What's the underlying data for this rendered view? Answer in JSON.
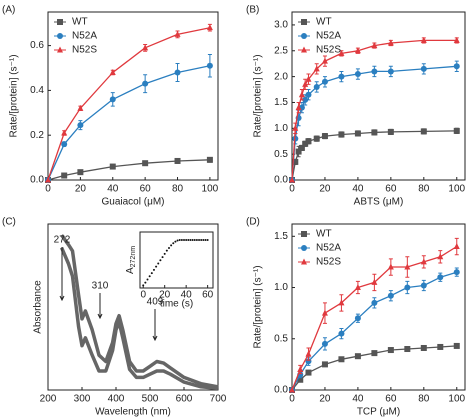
{
  "chart_data": [
    {
      "type": "scatter",
      "label": "(A)",
      "xlabel": "Guaiacol (μM)",
      "ylabel": "Rate/[protein] (s⁻¹)",
      "legend": "upper left",
      "xlim": [
        0,
        105
      ],
      "xticks": [
        0,
        20,
        40,
        60,
        80,
        100
      ],
      "ylim": [
        0,
        0.75
      ],
      "yticks": [
        {
          "value": 0,
          "label": "0.0"
        },
        {
          "value": 0.2,
          "label": "0.2"
        },
        {
          "value": 0.4,
          "label": "0.4"
        },
        {
          "value": 0.6,
          "label": "0.6"
        }
      ],
      "x": [
        0,
        10,
        20,
        40,
        60,
        80,
        100
      ],
      "series": [
        {
          "name": "WT",
          "color": "#555555",
          "marker": "square",
          "values": [
            0,
            0.02,
            0.035,
            0.06,
            0.075,
            0.085,
            0.09
          ],
          "errors": [
            0,
            0.005,
            0.005,
            0.008,
            0.008,
            0.01,
            0.01
          ]
        },
        {
          "name": "N52A",
          "color": "#2b7fc0",
          "marker": "circle",
          "values": [
            0,
            0.16,
            0.245,
            0.36,
            0.43,
            0.48,
            0.51
          ],
          "errors": [
            0,
            0.01,
            0.02,
            0.03,
            0.04,
            0.04,
            0.05
          ]
        },
        {
          "name": "N52S",
          "color": "#e0393e",
          "marker": "triangle",
          "values": [
            0,
            0.21,
            0.32,
            0.48,
            0.59,
            0.65,
            0.68
          ],
          "errors": [
            0,
            0.01,
            0.01,
            0.01,
            0.015,
            0.015,
            0.015
          ]
        }
      ]
    },
    {
      "type": "scatter",
      "label": "(B)",
      "xlabel": "ABTS (μM)",
      "ylabel": "Rate/[protein] (s⁻¹)",
      "legend": "upper left",
      "xlim": [
        0,
        105
      ],
      "xticks": [
        0,
        20,
        40,
        60,
        80,
        100
      ],
      "ylim": [
        0,
        3.25
      ],
      "yticks": [
        {
          "value": 0,
          "label": "0.0"
        },
        {
          "value": 0.5,
          "label": "0.5"
        },
        {
          "value": 1,
          "label": "1.0"
        },
        {
          "value": 1.5,
          "label": "1.5"
        },
        {
          "value": 2,
          "label": "2.0"
        },
        {
          "value": 2.5,
          "label": "2.5"
        },
        {
          "value": 3,
          "label": "3.0"
        }
      ],
      "x": [
        0,
        2,
        4,
        6,
        8,
        10,
        15,
        20,
        30,
        40,
        50,
        60,
        80,
        100
      ],
      "series": [
        {
          "name": "WT",
          "color": "#555555",
          "marker": "square",
          "values": [
            0,
            0.35,
            0.55,
            0.62,
            0.7,
            0.75,
            0.8,
            0.85,
            0.88,
            0.9,
            0.92,
            0.93,
            0.94,
            0.95
          ],
          "errors": [
            0,
            0.05,
            0.1,
            0.05,
            0.05,
            0.05,
            0.05,
            0.05,
            0.05,
            0.05,
            0.05,
            0.05,
            0.05,
            0.05
          ]
        },
        {
          "name": "N52A",
          "color": "#2b7fc0",
          "marker": "circle",
          "values": [
            0,
            0.8,
            1.2,
            1.4,
            1.55,
            1.65,
            1.8,
            1.9,
            2.0,
            2.05,
            2.1,
            2.1,
            2.15,
            2.2
          ],
          "errors": [
            0,
            0.1,
            0.15,
            0.1,
            0.1,
            0.1,
            0.1,
            0.1,
            0.1,
            0.1,
            0.1,
            0.1,
            0.1,
            0.1
          ]
        },
        {
          "name": "N52S",
          "color": "#e0393e",
          "marker": "triangle",
          "values": [
            0,
            1.0,
            1.4,
            1.65,
            1.85,
            1.95,
            2.15,
            2.3,
            2.45,
            2.5,
            2.6,
            2.65,
            2.7,
            2.7
          ],
          "errors": [
            0,
            0.1,
            0.1,
            0.1,
            0.1,
            0.1,
            0.1,
            0.1,
            0.05,
            0.05,
            0.05,
            0.05,
            0.05,
            0.05
          ]
        }
      ]
    },
    {
      "type": "line",
      "label": "(C)",
      "xlabel": "Wavelength (nm)",
      "ylabel": "Absorbance",
      "xlim": [
        200,
        700
      ],
      "xticks": [
        200,
        300,
        400,
        500,
        600,
        700
      ],
      "ylim": [
        0,
        1.05
      ],
      "annotations": [
        "272",
        "310",
        "409"
      ],
      "x": [
        240,
        260,
        272,
        290,
        300,
        310,
        330,
        350,
        370,
        390,
        400,
        409,
        420,
        440,
        460,
        480,
        500,
        520,
        540,
        560,
        600,
        650,
        700
      ],
      "series": [
        {
          "color": "#666666",
          "values": [
            0.98,
            0.92,
            0.88,
            0.6,
            0.45,
            0.5,
            0.38,
            0.22,
            0.18,
            0.3,
            0.42,
            0.47,
            0.38,
            0.18,
            0.12,
            0.12,
            0.15,
            0.18,
            0.17,
            0.14,
            0.08,
            0.04,
            0.02
          ]
        },
        {
          "color": "#666666",
          "values": [
            0.9,
            0.8,
            0.72,
            0.4,
            0.28,
            0.33,
            0.22,
            0.12,
            0.12,
            0.25,
            0.38,
            0.43,
            0.33,
            0.13,
            0.08,
            0.08,
            0.1,
            0.12,
            0.12,
            0.1,
            0.05,
            0.02,
            0.01
          ]
        }
      ]
    },
    {
      "type": "scatter",
      "label": "(D)",
      "xlabel": "TCP (μM)",
      "ylabel": "Rate/[protein] (s⁻¹)",
      "legend": "upper left",
      "xlim": [
        0,
        105
      ],
      "xticks": [
        0,
        20,
        40,
        60,
        80,
        100
      ],
      "ylim": [
        0,
        1.62
      ],
      "yticks": [
        {
          "value": 0,
          "label": "0.0"
        },
        {
          "value": 0.5,
          "label": "0.5"
        },
        {
          "value": 1,
          "label": "1.0"
        },
        {
          "value": 1.5,
          "label": "1.5"
        }
      ],
      "x": [
        0,
        5,
        10,
        20,
        30,
        40,
        50,
        60,
        70,
        80,
        90,
        100
      ],
      "series": [
        {
          "name": "WT",
          "color": "#555555",
          "marker": "square",
          "values": [
            0,
            0.1,
            0.17,
            0.25,
            0.3,
            0.33,
            0.36,
            0.39,
            0.4,
            0.41,
            0.42,
            0.43
          ],
          "errors": [
            0,
            0.01,
            0.01,
            0.02,
            0.02,
            0.02,
            0.02,
            0.02,
            0.02,
            0.02,
            0.02,
            0.02
          ]
        },
        {
          "name": "N52A",
          "color": "#2b7fc0",
          "marker": "circle",
          "values": [
            0,
            0.15,
            0.28,
            0.45,
            0.55,
            0.7,
            0.85,
            0.92,
            1.0,
            1.02,
            1.1,
            1.15
          ],
          "errors": [
            0,
            0.03,
            0.04,
            0.06,
            0.05,
            0.04,
            0.05,
            0.05,
            0.06,
            0.05,
            0.04,
            0.04
          ]
        },
        {
          "name": "N52S",
          "color": "#e0393e",
          "marker": "triangle",
          "values": [
            0,
            0.2,
            0.35,
            0.75,
            0.85,
            1.0,
            1.05,
            1.2,
            1.2,
            1.25,
            1.3,
            1.4
          ],
          "errors": [
            0,
            0.04,
            0.06,
            0.1,
            0.08,
            0.06,
            0.08,
            0.08,
            0.1,
            0.06,
            0.06,
            0.08
          ]
        }
      ]
    },
    {
      "type": "dots",
      "xlabel": "time (s)",
      "ylabel": {
        "main": "A",
        "sub": "272nm"
      },
      "xlim": [
        -3,
        65
      ],
      "xticks": [
        0,
        20,
        40,
        60
      ],
      "ylim": [
        0,
        1.05
      ],
      "x": [
        0,
        2,
        4,
        6,
        8,
        10,
        12,
        14,
        16,
        18,
        20,
        22,
        24,
        26,
        28,
        30,
        32,
        34,
        36,
        38,
        40,
        42,
        44,
        46,
        48,
        50,
        52,
        54,
        56,
        58,
        60
      ],
      "series": [
        {
          "color": "#111111",
          "values": [
            0.05,
            0.1,
            0.16,
            0.22,
            0.28,
            0.34,
            0.4,
            0.46,
            0.52,
            0.58,
            0.64,
            0.7,
            0.75,
            0.8,
            0.84,
            0.87,
            0.89,
            0.9,
            0.9,
            0.9,
            0.9,
            0.9,
            0.9,
            0.9,
            0.9,
            0.9,
            0.9,
            0.9,
            0.9,
            0.9,
            0.9
          ]
        }
      ]
    }
  ]
}
